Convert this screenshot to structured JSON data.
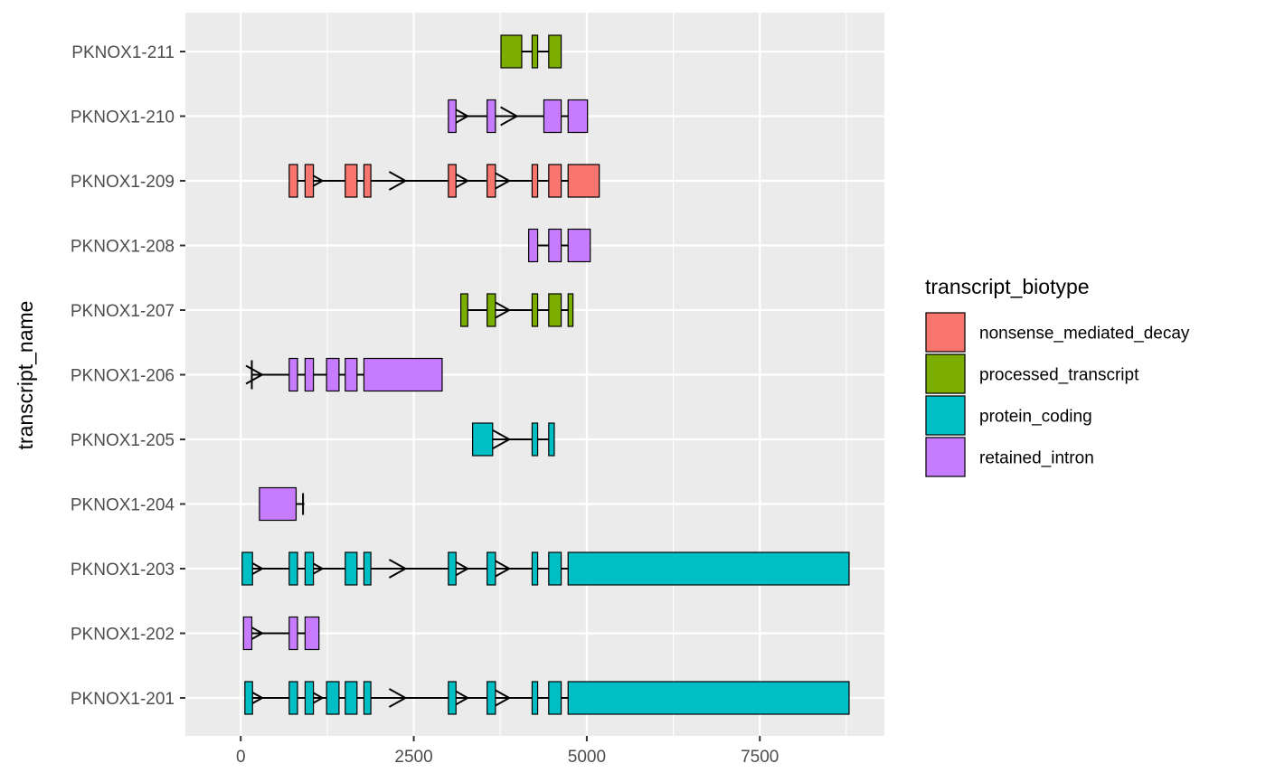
{
  "chart_data": {
    "type": "gene-model",
    "title": "",
    "xlabel": "",
    "ylabel": "transcript_name",
    "xlim": [
      -800,
      9300
    ],
    "x_ticks": [
      0,
      2500,
      5000,
      7500
    ],
    "x_tick_labels": [
      "0",
      "2500",
      "5000",
      "7500"
    ],
    "grid": true,
    "legend": {
      "title": "transcript_biotype",
      "position": "right",
      "entries": [
        {
          "name": "nonsense_mediated_decay",
          "color": "#F8766D"
        },
        {
          "name": "processed_transcript",
          "color": "#7CAE00"
        },
        {
          "name": "protein_coding",
          "color": "#00BFC4"
        },
        {
          "name": "retained_intron",
          "color": "#C77CFF"
        }
      ]
    },
    "transcripts": [
      {
        "name": "PKNOX1-211",
        "biotype": "processed_transcript",
        "exons": [
          [
            3760,
            4060
          ],
          [
            4210,
            4290
          ],
          [
            4450,
            4630
          ]
        ],
        "arrows": []
      },
      {
        "name": "PKNOX1-210",
        "biotype": "retained_intron",
        "exons": [
          [
            3000,
            3110
          ],
          [
            3560,
            3680
          ],
          [
            4380,
            4630
          ],
          [
            4730,
            5010
          ]
        ],
        "arrows": [
          3280,
          3990
        ]
      },
      {
        "name": "PKNOX1-209",
        "biotype": "nonsense_mediated_decay",
        "exons": [
          [
            700,
            820
          ],
          [
            930,
            1050
          ],
          [
            1510,
            1680
          ],
          [
            1780,
            1880
          ],
          [
            3000,
            3110
          ],
          [
            3560,
            3680
          ],
          [
            4210,
            4290
          ],
          [
            4450,
            4630
          ],
          [
            4730,
            5180
          ]
        ],
        "arrows": [
          1180,
          2380,
          3280,
          3880
        ]
      },
      {
        "name": "PKNOX1-208",
        "biotype": "retained_intron",
        "exons": [
          [
            4160,
            4290
          ],
          [
            4450,
            4630
          ],
          [
            4730,
            5050
          ]
        ],
        "arrows": []
      },
      {
        "name": "PKNOX1-207",
        "biotype": "processed_transcript",
        "exons": [
          [
            3180,
            3280
          ],
          [
            3560,
            3680
          ],
          [
            4210,
            4290
          ],
          [
            4450,
            4630
          ],
          [
            4730,
            4800
          ]
        ],
        "arrows": [
          3880
        ]
      },
      {
        "name": "PKNOX1-206",
        "biotype": "retained_intron",
        "exons": [
          [
            700,
            820
          ],
          [
            930,
            1050
          ],
          [
            1240,
            1420
          ],
          [
            1510,
            1680
          ],
          [
            1780,
            2910
          ]
        ],
        "arrows": [
          310
        ]
      },
      {
        "name": "PKNOX1-205",
        "biotype": "protein_coding",
        "exons": [
          [
            3350,
            3640
          ],
          [
            4210,
            4290
          ],
          [
            4450,
            4530
          ]
        ],
        "arrows": [
          3880
        ]
      },
      {
        "name": "PKNOX1-204",
        "biotype": "retained_intron",
        "exons": [
          [
            270,
            800
          ],
          [
            900,
            920
          ]
        ],
        "arrows": []
      },
      {
        "name": "PKNOX1-203",
        "biotype": "protein_coding",
        "exons": [
          [
            20,
            170
          ],
          [
            700,
            820
          ],
          [
            930,
            1050
          ],
          [
            1510,
            1680
          ],
          [
            1780,
            1880
          ],
          [
            3000,
            3110
          ],
          [
            3560,
            3680
          ],
          [
            4210,
            4290
          ],
          [
            4450,
            4630
          ],
          [
            4730,
            8790
          ]
        ],
        "arrows": [
          310,
          1180,
          2380,
          3280,
          3880
        ]
      },
      {
        "name": "PKNOX1-202",
        "biotype": "retained_intron",
        "exons": [
          [
            40,
            160
          ],
          [
            700,
            820
          ],
          [
            930,
            1130
          ]
        ],
        "arrows": [
          310
        ]
      },
      {
        "name": "PKNOX1-201",
        "biotype": "protein_coding",
        "exons": [
          [
            60,
            170
          ],
          [
            700,
            820
          ],
          [
            930,
            1050
          ],
          [
            1240,
            1420
          ],
          [
            1510,
            1680
          ],
          [
            1780,
            1880
          ],
          [
            3000,
            3110
          ],
          [
            3560,
            3680
          ],
          [
            4210,
            4290
          ],
          [
            4450,
            4630
          ],
          [
            4730,
            8790
          ]
        ],
        "arrows": [
          310,
          1180,
          2380,
          3280,
          3880
        ]
      }
    ]
  }
}
